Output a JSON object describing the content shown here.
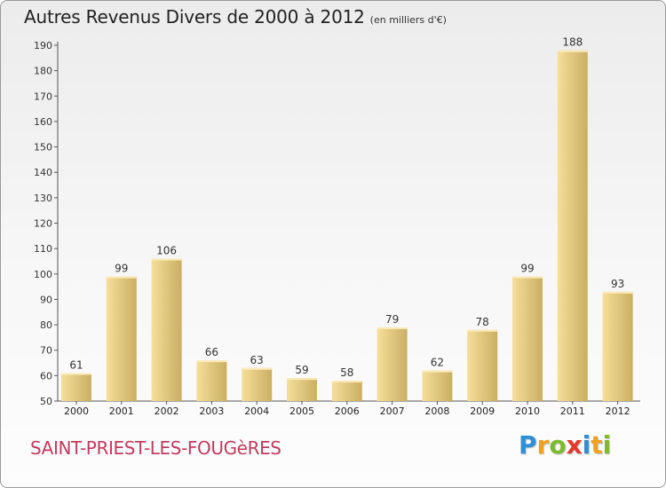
{
  "header": {
    "title": "Autres Revenus Divers de 2000 à 2012",
    "subtitle": "(en milliers d'€)"
  },
  "footer": {
    "commune": "SAINT-PRIEST-LES-FOUGèRES",
    "logo_letters": [
      {
        "char": "P",
        "color": "#2e8fd6"
      },
      {
        "char": "r",
        "color": "#f0a21e"
      },
      {
        "char": "o",
        "color": "#7cbb2f"
      },
      {
        "char": "x",
        "color": "#e23b2e"
      },
      {
        "char": "i",
        "color": "#2e8fd6"
      },
      {
        "char": "t",
        "color": "#f0a21e"
      },
      {
        "char": "i",
        "color": "#7cbb2f"
      }
    ]
  },
  "colors": {
    "bar_light": "#f6df9a",
    "bar_dark": "#c9ad62",
    "axis": "#555555",
    "commune": "#c13b5f"
  },
  "chart_data": {
    "type": "bar",
    "title": "Autres Revenus Divers de 2000 à 2012",
    "subtitle": "(en milliers d'€)",
    "categories": [
      "2000",
      "2001",
      "2002",
      "2003",
      "2004",
      "2005",
      "2006",
      "2007",
      "2008",
      "2009",
      "2010",
      "2011",
      "2012"
    ],
    "values": [
      61,
      99,
      106,
      66,
      63,
      59,
      58,
      79,
      62,
      78,
      99,
      188,
      93
    ],
    "ylim": [
      50,
      190
    ],
    "yticks": [
      50,
      60,
      70,
      80,
      90,
      100,
      110,
      120,
      130,
      140,
      150,
      160,
      170,
      180,
      190
    ],
    "xlabel": "",
    "ylabel": "",
    "grid": false,
    "data_labels": true
  }
}
